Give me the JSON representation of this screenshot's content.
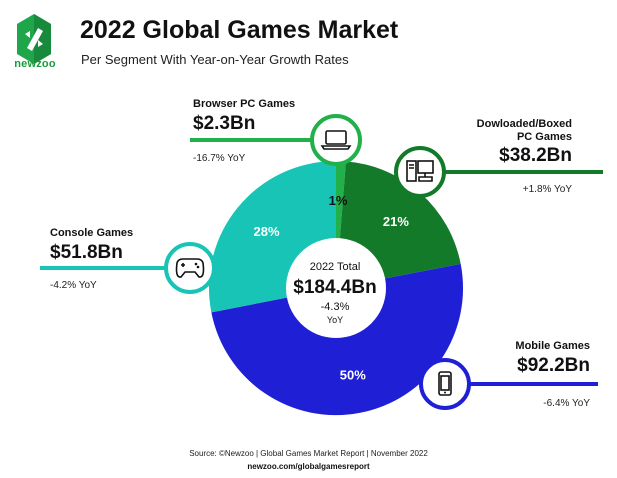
{
  "brand": {
    "name": "newzoo"
  },
  "header": {
    "title": "2022 Global Games Market",
    "subtitle": "Per Segment With Year-on-Year Growth Rates"
  },
  "center": {
    "label": "2022 Total",
    "value": "$184.4Bn",
    "growth": "-4.3%",
    "growth_unit": "YoY"
  },
  "segments": [
    {
      "name": "Browser PC Games",
      "value": "$2.3Bn",
      "yoy": "-16.7% YoY",
      "share": "1%",
      "icon": "laptop-icon",
      "color": "#22b04a"
    },
    {
      "name": "Dowloaded/Boxed PC Games",
      "value": "$38.2Bn",
      "yoy": "+1.8% YoY",
      "share": "21%",
      "icon": "desktop-computer-icon",
      "color": "#137a2a"
    },
    {
      "name": "Mobile Games",
      "value": "$92.2Bn",
      "yoy": "-6.4% YoY",
      "share": "50%",
      "icon": "smartphone-icon",
      "color": "#1f1fd6"
    },
    {
      "name": "Console Games",
      "value": "$51.8Bn",
      "yoy": "-4.2% YoY",
      "share": "28%",
      "icon": "gamepad-icon",
      "color": "#17c4b6"
    }
  ],
  "chart_data": {
    "type": "pie",
    "categories": [
      "Browser PC Games",
      "Dowloaded/Boxed PC Games",
      "Mobile Games",
      "Console Games"
    ],
    "values": [
      2.3,
      38.2,
      92.2,
      51.8
    ],
    "percent_labels": [
      "1%",
      "21%",
      "50%",
      "28%"
    ],
    "colors": [
      "#22b04a",
      "#137a2a",
      "#1f1fd6",
      "#17c4b6"
    ],
    "total": 184.4,
    "style": "donut"
  },
  "footer": {
    "source": "Source: ©Newzoo | Global Games Market Report | November 2022",
    "url": "newzoo.com/globalgamesreport"
  }
}
